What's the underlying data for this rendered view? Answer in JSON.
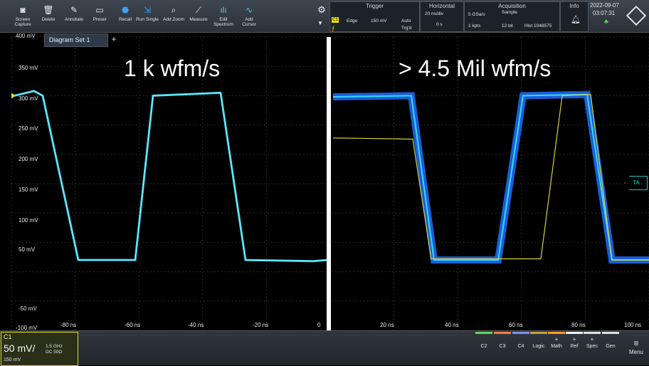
{
  "toolbar": {
    "buttons": [
      {
        "label1": "Screen",
        "label2": "Capture",
        "icon": "camera-icon",
        "glyph": "◙"
      },
      {
        "label1": "Delete",
        "label2": "",
        "icon": "trash-icon",
        "glyph": "🗑"
      },
      {
        "label1": "Annotate",
        "label2": "",
        "icon": "pen-icon",
        "glyph": "✎"
      },
      {
        "label1": "Preset",
        "label2": "",
        "icon": "preset-icon",
        "glyph": "▭"
      },
      {
        "label1": "Recall",
        "label2": "",
        "icon": "recall-icon",
        "glyph": "⬣"
      },
      {
        "label1": "Run Single",
        "label2": "",
        "icon": "run-single-icon",
        "glyph": "⇲"
      },
      {
        "label1": "Add Zoom",
        "label2": "",
        "icon": "zoom-icon",
        "glyph": "⌕"
      },
      {
        "label1": "Measure",
        "label2": "",
        "icon": "measure-icon",
        "glyph": "⟋"
      },
      {
        "label1": "Edit",
        "label2": "Spectrum",
        "icon": "spectrum-icon",
        "glyph": "ılı"
      },
      {
        "label1": "Add",
        "label2": "Cursor",
        "icon": "cursor-icon",
        "glyph": "∿"
      }
    ],
    "trigger": {
      "title": "Trigger",
      "type": "Edge",
      "level": "150 mV",
      "mode": "Auto",
      "state": "Trg'd",
      "source": "C1"
    },
    "horizontal": {
      "title": "Horizontal",
      "scale": "20 ns/div",
      "position": "0 s"
    },
    "acquisition": {
      "title": "Acquisition",
      "rate": "5 GSa/s",
      "mode": "Sample",
      "points": "1 kpts",
      "bits": "12 bit",
      "hist": "Hist 1048575"
    },
    "info": {
      "title": "Info"
    },
    "date": "2022-09-07",
    "time": "03:07:31"
  },
  "tabs": {
    "diagram": "Diagram Set 1",
    "add": "+"
  },
  "overlay": {
    "left": "1 k wfm/s",
    "right": "> 4.5 Mil wfm/s"
  },
  "y_axis": [
    "400 mV",
    "350 mV",
    "300 mV",
    "250 mV",
    "200 mV",
    "150 mV",
    "100 mV",
    "50 mV",
    "",
    "-50 mV",
    "-100 mV"
  ],
  "x_axis": [
    "-80 ns",
    "-60 ns",
    "-40 ns",
    "-20 ns",
    "0",
    "20 ns",
    "40 ns",
    "60 ns",
    "80 ns",
    "100 ns"
  ],
  "ta_marker": "TA",
  "channel": {
    "name": "C1",
    "scale": "50 mV/",
    "bw": "1.5 GHz",
    "coupling": "DC 50Ω",
    "offset": "150 mV"
  },
  "bottom_buttons": [
    {
      "label": "C2",
      "plus": "",
      "color": "#5cd65c"
    },
    {
      "label": "C3",
      "plus": "",
      "color": "#ff7a3d"
    },
    {
      "label": "C4",
      "plus": "",
      "color": "#7a8cff"
    },
    {
      "label": "Logic",
      "plus": "",
      "color": "#c0a040"
    },
    {
      "label": "Math",
      "plus": "+",
      "color": "#ff9a20"
    },
    {
      "label": "Ref",
      "plus": "+",
      "color": "#f0f0f0"
    },
    {
      "label": "Spec",
      "plus": "+",
      "color": "#e0e0e0"
    },
    {
      "label": "Gen",
      "plus": "",
      "color": "#e0e0e0"
    }
  ],
  "menu": "Menu",
  "colors": {
    "ch1": "#e8e000",
    "waveform": "#3ad9f0",
    "persistence": "#1f6fff",
    "accent_teal": "#19c9c0"
  }
}
